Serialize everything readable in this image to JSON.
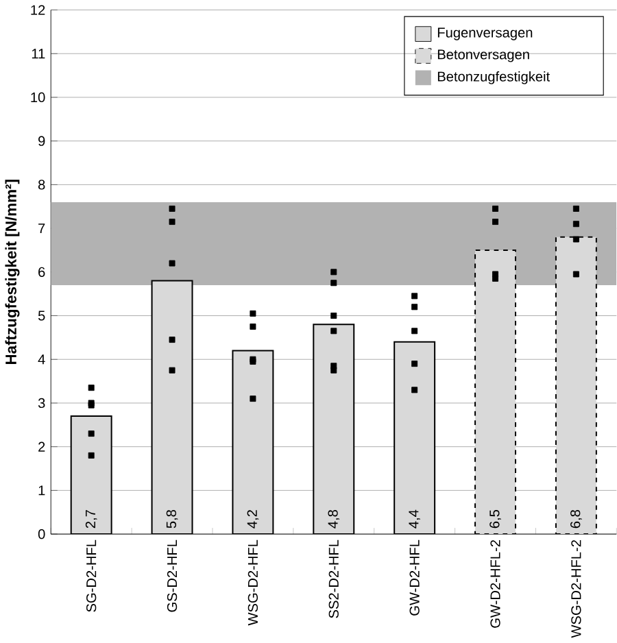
{
  "chart_data": {
    "type": "bar",
    "ylabel": "Haftzugfestigkeit  [N/mm²]",
    "categories": [
      "SG-D2-HFL",
      "GS-D2-HFL",
      "WSG-D2-HFL",
      "SS2-D2-HFL",
      "GW-D2-HFL",
      "GW-D2-HFL-2",
      "WSG-D2-HFL-2"
    ],
    "series": [
      {
        "name": "Fugenversagen",
        "color": "#d9d9d9",
        "line_style": "solid",
        "values": [
          2.7,
          5.8,
          4.2,
          4.8,
          4.4,
          null,
          null
        ],
        "value_labels": [
          "2,7",
          "5,8",
          "4,2",
          "4,8",
          "4,4",
          null,
          null
        ]
      },
      {
        "name": "Betonversagen",
        "color": "#d9d9d9",
        "line_style": "dashed",
        "values": [
          null,
          null,
          null,
          null,
          null,
          6.5,
          6.8
        ],
        "value_labels": [
          null,
          null,
          null,
          null,
          null,
          "6,5",
          "6,8"
        ]
      },
      {
        "type": "scatter",
        "color": "#000000",
        "marker": "square",
        "x": [
          "SG-D2-HFL",
          "SG-D2-HFL",
          "SG-D2-HFL",
          "SG-D2-HFL",
          "SG-D2-HFL",
          "GS-D2-HFL",
          "GS-D2-HFL",
          "GS-D2-HFL",
          "GS-D2-HFL",
          "GS-D2-HFL",
          "WSG-D2-HFL",
          "WSG-D2-HFL",
          "WSG-D2-HFL",
          "WSG-D2-HFL",
          "WSG-D2-HFL",
          "SS2-D2-HFL",
          "SS2-D2-HFL",
          "SS2-D2-HFL",
          "SS2-D2-HFL",
          "SS2-D2-HFL",
          "SS2-D2-HFL",
          "GW-D2-HFL",
          "GW-D2-HFL",
          "GW-D2-HFL",
          "GW-D2-HFL",
          "GW-D2-HFL",
          "GW-D2-HFL-2",
          "GW-D2-HFL-2",
          "GW-D2-HFL-2",
          "GW-D2-HFL-2",
          "WSG-D2-HFL-2",
          "WSG-D2-HFL-2",
          "WSG-D2-HFL-2",
          "WSG-D2-HFL-2"
        ],
        "values": [
          3.35,
          3.0,
          2.95,
          2.3,
          1.8,
          7.45,
          7.15,
          6.2,
          4.45,
          3.75,
          5.05,
          4.75,
          4.0,
          3.95,
          3.1,
          6.0,
          5.75,
          5.0,
          4.65,
          3.85,
          3.75,
          5.45,
          5.2,
          4.65,
          3.9,
          3.3,
          7.45,
          7.15,
          5.95,
          5.85,
          7.45,
          7.1,
          6.75,
          5.95
        ]
      }
    ],
    "bands": [
      {
        "axis": "y",
        "from": 5.7,
        "to": 7.6,
        "label": "Betonzugfestigkeit",
        "color": "#b2b2b2"
      }
    ],
    "ylim": [
      0,
      12
    ],
    "yticks": [
      0,
      1,
      2,
      3,
      4,
      5,
      6,
      7,
      8,
      9,
      10,
      11,
      12
    ],
    "grid": "y",
    "legend": "top right"
  }
}
